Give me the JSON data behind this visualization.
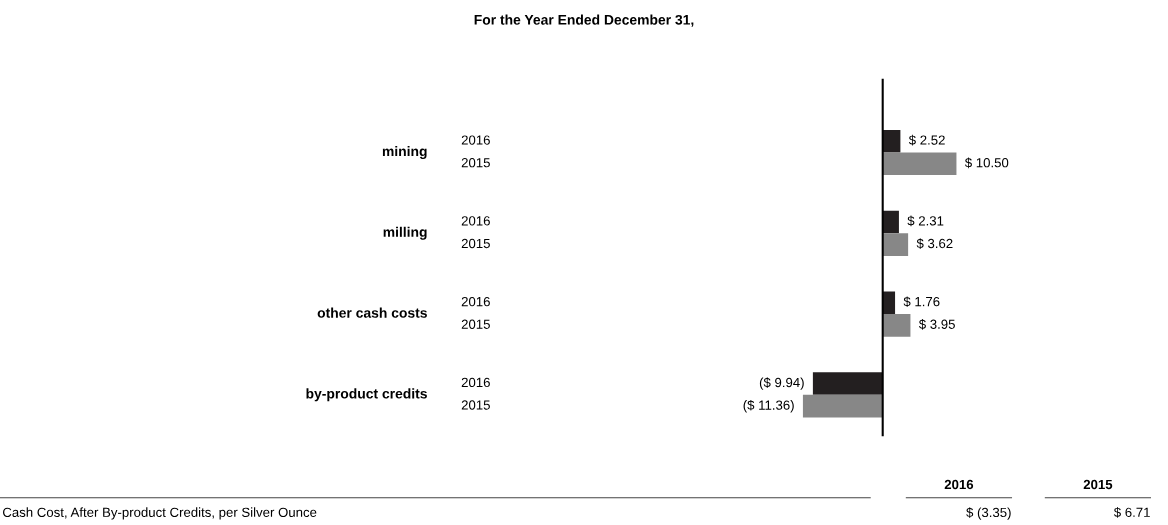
{
  "chart_data": {
    "type": "bar",
    "orientation": "horizontal",
    "title": "For the Year Ended December 31,",
    "categories": [
      "mining",
      "milling",
      "other cash costs",
      "by-product credits"
    ],
    "series": [
      {
        "name": "2016",
        "color": "#231f20",
        "values": [
          2.52,
          2.31,
          1.76,
          -9.94
        ],
        "value_labels": [
          "$ 2.52",
          "$ 2.31",
          "$ 1.76",
          "($ 9.94)"
        ]
      },
      {
        "name": "2015",
        "color": "#878787",
        "values": [
          10.5,
          3.62,
          3.95,
          -11.36
        ],
        "value_labels": [
          "$ 10.50",
          "$ 3.62",
          "$ 3.95",
          "($ 11.36)"
        ]
      }
    ],
    "annotations": [
      "Cash Cost, After By-product Credits, per Silver Ounce",
      "$ (3.35)",
      "$ 6.71"
    ]
  }
}
